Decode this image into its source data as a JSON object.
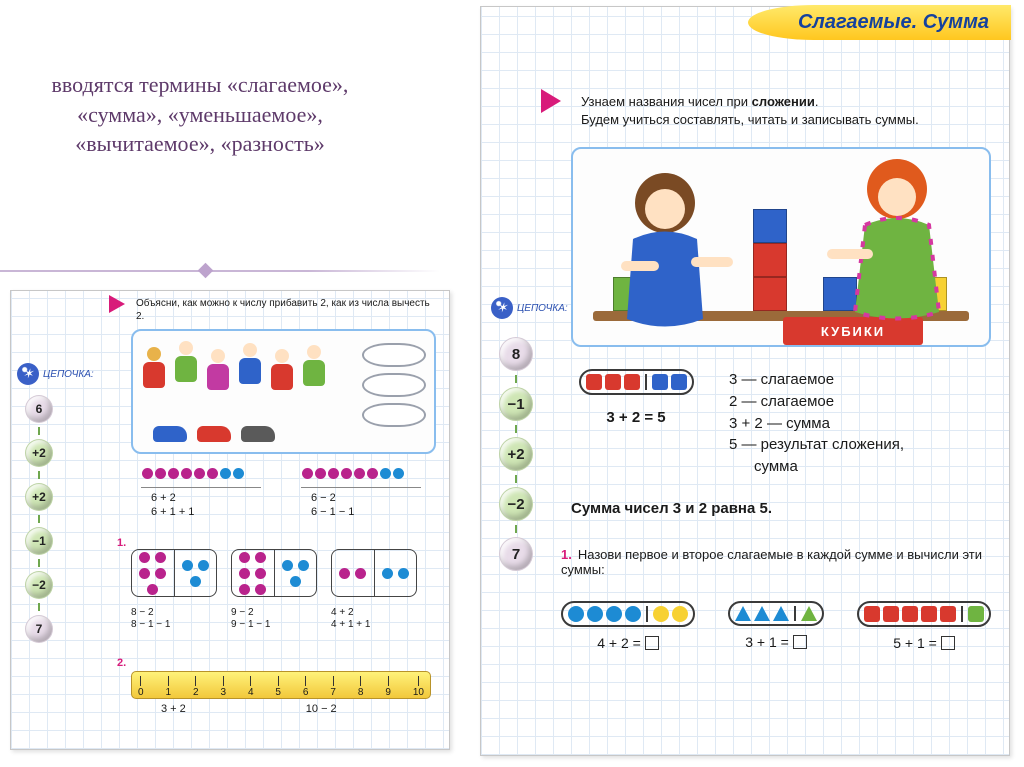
{
  "slide": {
    "title": "вводятся термины «слагаемое», «сумма», «уменьшаемое», «вычитаемое», «разность»"
  },
  "colors": {
    "title": "#5e3a6a",
    "marker": "#d81b7a",
    "header_bg": "#ffd233",
    "header_text": "#14419e",
    "grid": "#dfe9f4",
    "red": "#d8392e",
    "blue": "#2f63c9",
    "green": "#6fb441",
    "yellow": "#f7d133",
    "magenta": "#b9238c",
    "cyan": "#1d8bd4",
    "orange_hair": "#e05a1d",
    "brown_hair": "#7a4a24",
    "skin": "#ffe1c2"
  },
  "right": {
    "header": "Слагаемые. Сумма",
    "intro_line1_a": "Узнаем названия чисел при ",
    "intro_line1_b": "сложении",
    "intro_line1_c": ".",
    "intro_line2": "Будем учиться составлять, читать и записывать суммы.",
    "cubes_box_label": "КУБИКИ",
    "chain_label": "ЦЕПОЧКА:",
    "chain": [
      {
        "text": "8",
        "bg": "#e8dce9"
      },
      {
        "text": "−1",
        "bg": "#cfe6b5"
      },
      {
        "text": "+2",
        "bg": "#cfe6b5"
      },
      {
        "text": "−2",
        "bg": "#cfe6b5"
      },
      {
        "text": "7",
        "bg": "#e8dce9"
      }
    ],
    "def_shapes": {
      "red_count": 3,
      "blue_count": 2
    },
    "def_lines": [
      "3 — слагаемое",
      "2 — слагаемое",
      "3 + 2 — сумма",
      "5 — результат сложения,",
      "      сумма"
    ],
    "def_left_eq": "3 + 2 = 5",
    "bold_line": "Сумма чисел 3 и 2 равна 5.",
    "task1_num": "1.",
    "task1_text": "Назови первое и второе слагаемые в каждой сумме и вычисли эти суммы:",
    "sets": [
      {
        "kind": "circle",
        "left": {
          "n": 4,
          "fill": "#1d8bd4"
        },
        "right": {
          "n": 2,
          "fill": "#f7d133"
        },
        "eq": "4 + 2 ="
      },
      {
        "kind": "triangle",
        "left": {
          "n": 3,
          "fill": "#1d8bd4"
        },
        "right": {
          "n": 1,
          "fill": "#6fb441"
        },
        "eq": "3 + 1 ="
      },
      {
        "kind": "square",
        "left": {
          "n": 5,
          "fill": "#d8392e"
        },
        "right": {
          "n": 1,
          "fill": "#6fb441"
        },
        "eq": "5 + 1 ="
      }
    ]
  },
  "left": {
    "intro": "Объясни, как можно к числу прибавить 2, как из числа вычесть 2.",
    "chain_label": "ЦЕПОЧКА:",
    "chain": [
      {
        "text": "6",
        "bg": "#e8dce9"
      },
      {
        "text": "+2",
        "bg": "#cfe6b5"
      },
      {
        "text": "+2",
        "bg": "#cfe6b5"
      },
      {
        "text": "−1",
        "bg": "#cfe6b5"
      },
      {
        "text": "−2",
        "bg": "#cfe6b5"
      },
      {
        "text": "7",
        "bg": "#e8dce9"
      }
    ],
    "dot_rows": {
      "left": {
        "magenta": 6,
        "cyan": 2
      },
      "right": {
        "magenta": 6,
        "cyan": 2
      }
    },
    "eq_block_left": [
      "6 + 2",
      "6 + 1 + 1"
    ],
    "eq_block_right": [
      "6 − 2",
      "6 − 1 − 1"
    ],
    "task1_label": "1.",
    "frames": [
      {
        "left": {
          "n": 5,
          "c": "#b9238c"
        },
        "right": {
          "n": 3,
          "c": "#1d8bd4"
        },
        "eqs": [
          "8 − 2",
          "8 − 1 − 1"
        ]
      },
      {
        "left": {
          "n": 6,
          "c": "#b9238c"
        },
        "right": {
          "n": 3,
          "c": "#1d8bd4"
        },
        "eqs": [
          "9 − 2",
          "9 − 1 − 1"
        ]
      },
      {
        "left": {
          "n": 2,
          "c": "#b9238c"
        },
        "right": {
          "n": 2,
          "c": "#1d8bd4"
        },
        "eqs": [
          "4 + 2",
          "4 + 1 + 1"
        ]
      }
    ],
    "task2_label": "2.",
    "ruler_ticks": [
      "0",
      "1",
      "2",
      "3",
      "4",
      "5",
      "6",
      "7",
      "8",
      "9",
      "10"
    ],
    "ruler_eqs": [
      "3 + 2",
      "10 − 2"
    ]
  }
}
